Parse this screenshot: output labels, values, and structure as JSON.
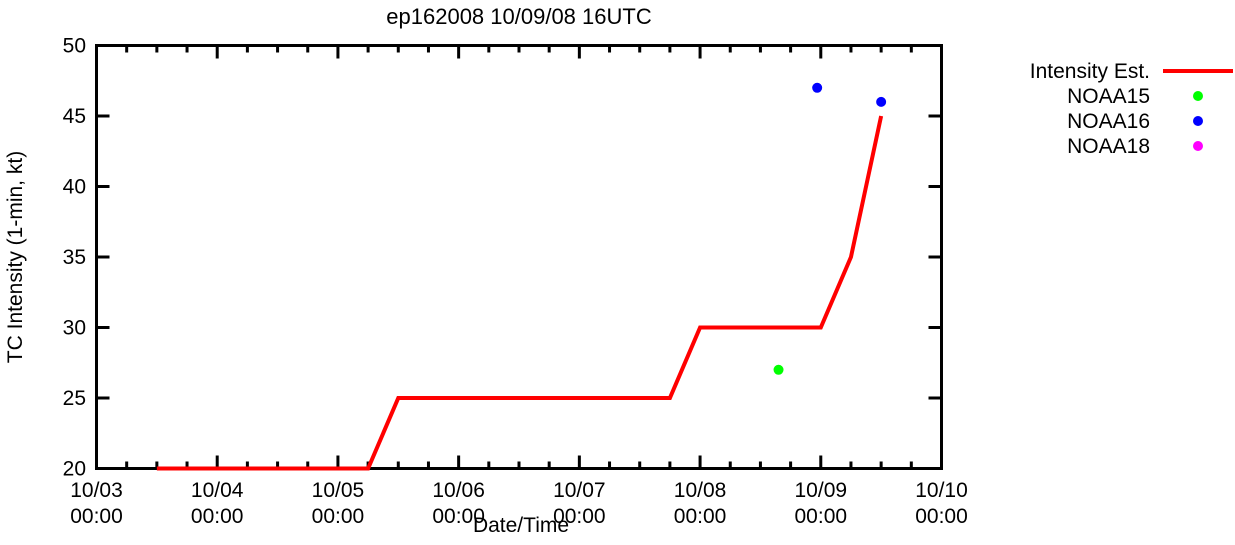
{
  "page": {
    "background": "#ffffff"
  },
  "chart_data": {
    "type": "line",
    "title": "ep162008 10/09/08 16UTC",
    "xlabel": "Date/Time",
    "ylabel": "TC Intensity (1-min, kt)",
    "x_note": "t = days since 10/03 00:00",
    "xlim": [
      0,
      7
    ],
    "ylim": [
      20,
      50
    ],
    "yticks": [
      20,
      25,
      30,
      35,
      40,
      45,
      50
    ],
    "x_minor_step": 0.25,
    "grid": false,
    "legend_position": "outside-top-right",
    "xticks": [
      {
        "t": 0,
        "date": "10/03",
        "time": "00:00"
      },
      {
        "t": 1,
        "date": "10/04",
        "time": "00:00"
      },
      {
        "t": 2,
        "date": "10/05",
        "time": "00:00"
      },
      {
        "t": 3,
        "date": "10/06",
        "time": "00:00"
      },
      {
        "t": 4,
        "date": "10/07",
        "time": "00:00"
      },
      {
        "t": 5,
        "date": "10/08",
        "time": "00:00"
      },
      {
        "t": 6,
        "date": "10/09",
        "time": "00:00"
      },
      {
        "t": 7,
        "date": "10/10",
        "time": "00:00"
      }
    ],
    "series": [
      {
        "name": "Intensity Est.",
        "kind": "line",
        "color": "#ff0000",
        "points": [
          [
            0.5,
            20
          ],
          [
            2.25,
            20
          ],
          [
            2.5,
            25
          ],
          [
            4.75,
            25
          ],
          [
            5.0,
            30
          ],
          [
            6.0,
            30
          ],
          [
            6.25,
            35
          ],
          [
            6.5,
            45
          ]
        ]
      },
      {
        "name": "NOAA15",
        "kind": "scatter",
        "color": "#00ff00",
        "points": [
          [
            5.65,
            27
          ]
        ]
      },
      {
        "name": "NOAA16",
        "kind": "scatter",
        "color": "#0000ff",
        "points": [
          [
            5.97,
            47
          ],
          [
            6.5,
            46
          ]
        ]
      },
      {
        "name": "NOAA18",
        "kind": "scatter",
        "color": "#ff00ff",
        "points": []
      }
    ],
    "axis_color": "#000000"
  }
}
